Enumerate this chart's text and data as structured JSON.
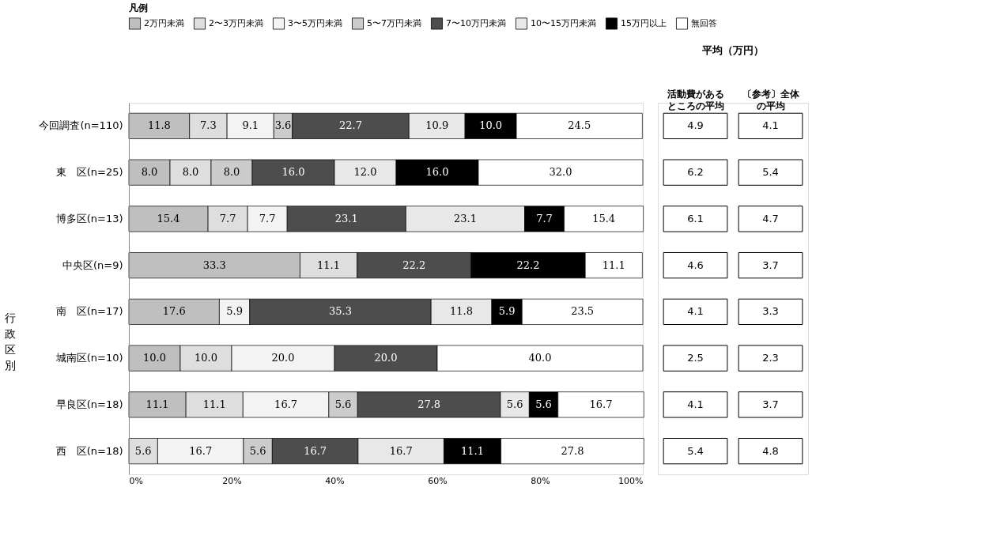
{
  "chart_data": [
    {
      "type": "bar",
      "orientation": "horizontal",
      "stacked": true,
      "grid": false,
      "legend": "top",
      "legend_title": "凡例",
      "categories": [
        "今回調査(n=110)",
        "東　区(n=25)",
        "博多区(n=13)",
        "中央区(n=9)",
        "南　区(n=17)",
        "城南区(n=10)",
        "早良区(n=18)",
        "西　区(n=18)"
      ],
      "xlim": [
        0,
        100
      ],
      "xticks": [
        {
          "value": 0,
          "label": "0%"
        },
        {
          "value": 20,
          "label": "20%"
        },
        {
          "value": 40,
          "label": "40%"
        },
        {
          "value": 60,
          "label": "60%"
        },
        {
          "value": 80,
          "label": "80%"
        },
        {
          "value": 100,
          "label": "100%"
        }
      ],
      "annotations": [
        "行政区別"
      ],
      "series": [
        {
          "name": "2万円未満",
          "color": "#bfbfbf",
          "values": [
            11.8,
            8.0,
            15.4,
            33.3,
            17.6,
            10.0,
            11.1,
            null
          ],
          "value_labels": [
            "11.8",
            "8.0",
            "15.4",
            "33.3",
            "17.6",
            "10.0",
            "11.1",
            null
          ]
        },
        {
          "name": "2〜3万円未満",
          "color": "#dedede",
          "values": [
            7.3,
            8.0,
            7.7,
            11.1,
            null,
            10.0,
            11.1,
            5.6
          ],
          "value_labels": [
            "7.3",
            "8.0",
            "7.7",
            "11.1",
            null,
            "10.0",
            "11.1",
            "5.6"
          ]
        },
        {
          "name": "3〜5万円未満",
          "color": "#f3f3f3",
          "values": [
            9.1,
            null,
            7.7,
            null,
            5.9,
            20.0,
            16.7,
            16.7
          ],
          "value_labels": [
            "9.1",
            null,
            "7.7",
            null,
            "5.9",
            "20.0",
            "16.7",
            "16.7"
          ]
        },
        {
          "name": "5〜7万円未満",
          "color": "#cccccc",
          "values": [
            3.6,
            8.0,
            null,
            null,
            null,
            null,
            5.6,
            5.6
          ],
          "value_labels": [
            "3.6",
            "8.0",
            null,
            null,
            null,
            null,
            "5.6",
            "5.6"
          ]
        },
        {
          "name": "7〜10万円未満",
          "color": "#4d4d4d",
          "values": [
            22.7,
            16.0,
            23.1,
            22.2,
            35.3,
            20.0,
            27.8,
            16.7
          ],
          "value_labels": [
            "22.7",
            "16.0",
            "23.1",
            "22.2",
            "35.3",
            "20.0",
            "27.8",
            "16.7"
          ]
        },
        {
          "name": "10〜15万円未満",
          "color": "#e8e8e8",
          "values": [
            10.9,
            12.0,
            23.1,
            null,
            11.8,
            null,
            5.6,
            16.7
          ],
          "value_labels": [
            "10.9",
            "12.0",
            "23.1",
            null,
            "11.8",
            null,
            "5.6",
            "16.7"
          ]
        },
        {
          "name": "15万円以上",
          "color": "#000000",
          "values": [
            10.0,
            16.0,
            7.7,
            22.2,
            5.9,
            null,
            5.6,
            11.1
          ],
          "value_labels": [
            "10.0",
            "16.0",
            "7.7",
            "22.2",
            "5.9",
            null,
            "5.6",
            "11.1"
          ]
        },
        {
          "name": "無回答",
          "color": "#ffffff",
          "values": [
            24.5,
            32.0,
            15.4,
            11.1,
            23.5,
            40.0,
            16.7,
            27.8
          ],
          "value_labels": [
            "24.5",
            "32.0",
            "15.4",
            "11.1",
            "23.5",
            "40.0",
            "16.7",
            "27.8"
          ]
        }
      ]
    },
    {
      "type": "other",
      "title": "平均（万円）",
      "annotations": [
        "活動費があるところの平均",
        "〔参考〕全体の平均",
        "4.9",
        "4.1",
        "6.2",
        "5.4",
        "6.1",
        "4.7",
        "4.6",
        "3.7",
        "4.1",
        "3.3",
        "2.5",
        "2.3",
        "4.1",
        "3.7",
        "5.4",
        "4.8"
      ]
    }
  ]
}
